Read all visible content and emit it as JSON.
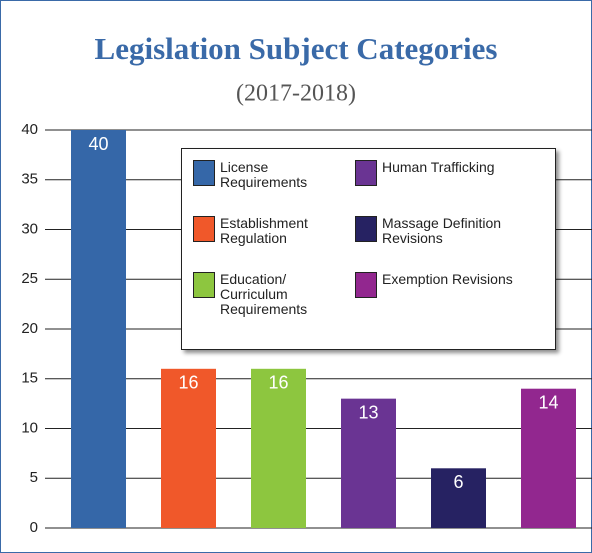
{
  "chart_data": {
    "type": "bar",
    "title": "Legislation Subject Categories",
    "subtitle": "(2017-2018)",
    "categories": [
      "License Requirements",
      "Establishment Regulation",
      "Education/ Curriculum Requirements",
      "Human Trafficking",
      "Massage Definition Revisions",
      "Exemption Revisions"
    ],
    "values": [
      40,
      16,
      16,
      13,
      6,
      14
    ],
    "colors": [
      "#3567a8",
      "#f0582a",
      "#8dc63f",
      "#6a3493",
      "#262262",
      "#92278f"
    ],
    "ylim": [
      0,
      40
    ],
    "yticks": [
      0,
      5,
      10,
      15,
      20,
      25,
      30,
      35,
      40
    ],
    "grid": true
  }
}
